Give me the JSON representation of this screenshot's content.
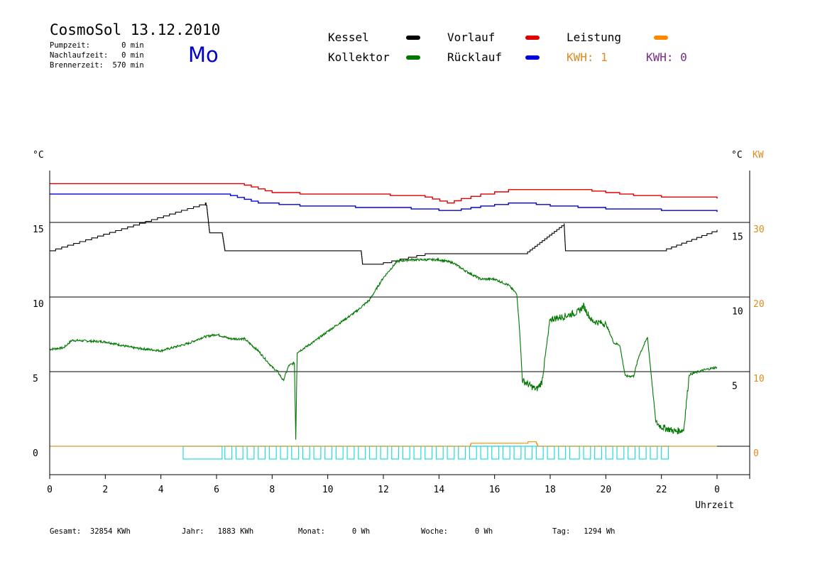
{
  "header": {
    "title": "CosmoSol 13.12.2010",
    "day": "Mo",
    "pumpzeit": "Pumpzeit:       0 min",
    "nachlaufzeit": "Nachlaufzeit:   0 min",
    "brennerzeit": "Brennerzeit:  570 min"
  },
  "legend": {
    "kessel": "Kessel",
    "kollektor": "Kollektor",
    "vorlauf": "Vorlauf",
    "ruecklauf": "Rücklauf",
    "leistung": "Leistung",
    "kwh1": "KWH: 1",
    "kwh2": "KWH: 0",
    "colors": {
      "kessel": "#000000",
      "kollektor": "#007700",
      "vorlauf": "#dd0000",
      "ruecklauf": "#0000dd",
      "leistung": "#ff8800",
      "kwh1": "#e08a1e",
      "kwh2": "#7a2a8a"
    }
  },
  "footer": {
    "gesamt": "Gesamt:  32854 KWh",
    "jahr": "Jahr:   1883 KWh",
    "monat": "Monat:      0 Wh",
    "woche": "Woche:      0 Wh",
    "tag": "Tag:   1294 Wh"
  },
  "chart_data": {
    "type": "line",
    "xlabel": "Uhrzeit",
    "ylabel_left": "°C",
    "ylabel_right": "°C",
    "ylabel_right2": "KW",
    "x_ticks": [
      "0",
      "2",
      "4",
      "6",
      "8",
      "10",
      "12",
      "14",
      "16",
      "18",
      "20",
      "22",
      "0"
    ],
    "xlim": [
      0,
      24
    ],
    "ylim": [
      -2,
      18.5
    ],
    "y_left_ticks": [
      "0",
      "5",
      "10",
      "15"
    ],
    "y_right_ticks": [
      "5",
      "10",
      "15"
    ],
    "y_kw_ticks": [
      "0",
      "10",
      "20",
      "30"
    ],
    "y_right_ticks_values": [
      4.5,
      9.5,
      14.5
    ],
    "series": [
      {
        "name": "Vorlauf",
        "color": "#dd0000",
        "x": [
          0,
          6.5,
          7,
          8,
          9,
          11,
          13.5,
          14.3,
          14.8,
          15.5,
          16.5,
          18,
          19,
          20,
          21,
          22,
          24
        ],
        "y": [
          17.6,
          17.6,
          17.5,
          17,
          16.9,
          16.9,
          16.7,
          16.3,
          16.6,
          16.9,
          17.2,
          17.2,
          17.2,
          17,
          16.8,
          16.7,
          16.6
        ]
      },
      {
        "name": "Rücklauf",
        "color": "#0000dd",
        "x": [
          0,
          5.5,
          6.5,
          7.5,
          9,
          11,
          13,
          14,
          14.8,
          15.5,
          16.5,
          17,
          18,
          19,
          20,
          22,
          24
        ],
        "y": [
          16.9,
          16.9,
          16.8,
          16.3,
          16.1,
          16.0,
          15.9,
          15.8,
          15.9,
          16.1,
          16.3,
          16.3,
          16.1,
          16.0,
          15.9,
          15.8,
          15.7
        ]
      },
      {
        "name": "Kessel",
        "color": "#000000",
        "x": [
          0,
          5.6,
          5.65,
          5.75,
          6.2,
          6.25,
          6.3,
          11.2,
          11.25,
          12,
          13.5,
          16.5,
          17.1,
          18.5,
          18.55,
          22,
          24
        ],
        "y": [
          13.1,
          16.3,
          16,
          14.3,
          14.3,
          13.7,
          13.1,
          13.1,
          12.2,
          12.3,
          12.9,
          12.9,
          12.9,
          14.9,
          13.1,
          13.1,
          14.5
        ]
      },
      {
        "name": "Kollektor",
        "color": "#007700",
        "x": [
          0,
          0.5,
          0.8,
          2,
          3,
          4,
          5,
          5.5,
          6,
          6.5,
          7,
          7.5,
          8,
          8.2,
          8.4,
          8.6,
          8.8,
          8.85,
          8.9,
          9,
          9.5,
          10,
          11,
          11.5,
          12,
          12.5,
          13,
          13.5,
          14,
          14.5,
          15,
          15.5,
          16,
          16.5,
          16.8,
          16.9,
          17,
          17.5,
          17.7,
          18,
          18.5,
          19,
          19.2,
          19.5,
          20,
          20.3,
          20.5,
          20.7,
          21,
          21.2,
          21.5,
          21.8,
          22,
          22.5,
          22.8,
          23,
          23.5,
          24
        ],
        "y": [
          6.5,
          6.6,
          7.1,
          7,
          6.6,
          6.4,
          6.9,
          7.3,
          7.5,
          7.2,
          7.2,
          6.4,
          5.3,
          5,
          4.4,
          5.4,
          5.6,
          0.5,
          6.3,
          6.4,
          7,
          7.7,
          9,
          9.8,
          11.3,
          12.4,
          12.5,
          12.5,
          12.5,
          12.3,
          11.7,
          11.2,
          11.2,
          10.8,
          10.2,
          7.8,
          4.4,
          3.8,
          4.3,
          8.5,
          8.7,
          9,
          9.4,
          8.4,
          8.2,
          6.9,
          6.8,
          4.7,
          4.7,
          6.1,
          7.3,
          1.6,
          1.3,
          1,
          1.1,
          4.8,
          5.1,
          5.3
        ]
      },
      {
        "name": "Leistung",
        "color": "#ff8800",
        "x": [
          0,
          15.1,
          15.15,
          16.5,
          17.2,
          17.5,
          17.55,
          24
        ],
        "y": [
          0,
          0,
          0.2,
          0.2,
          0.3,
          0.2,
          0,
          0
        ]
      }
    ],
    "pump_blocks": [
      [
        4.8,
        6.2
      ],
      [
        6.3,
        6.55
      ],
      [
        6.7,
        6.95
      ],
      [
        7.1,
        7.35
      ],
      [
        7.5,
        7.75
      ],
      [
        7.9,
        8.15
      ],
      [
        8.3,
        8.55
      ],
      [
        8.7,
        8.95
      ],
      [
        9.1,
        9.35
      ],
      [
        9.5,
        9.75
      ],
      [
        9.9,
        10.15
      ],
      [
        10.3,
        10.55
      ],
      [
        10.7,
        10.95
      ],
      [
        11.1,
        11.35
      ],
      [
        11.5,
        11.75
      ],
      [
        11.9,
        12.15
      ],
      [
        12.3,
        12.55
      ],
      [
        12.7,
        12.95
      ],
      [
        13.1,
        13.35
      ],
      [
        13.5,
        13.75
      ],
      [
        13.9,
        14.15
      ],
      [
        14.3,
        14.55
      ],
      [
        14.7,
        14.95
      ],
      [
        15.1,
        15.35
      ],
      [
        15.5,
        15.75
      ],
      [
        15.9,
        16.15
      ],
      [
        16.3,
        16.55
      ],
      [
        16.7,
        16.95
      ],
      [
        17.1,
        17.35
      ],
      [
        17.5,
        17.75
      ],
      [
        17.9,
        18.15
      ],
      [
        18.3,
        18.55
      ],
      [
        18.7,
        19.05
      ],
      [
        19.2,
        19.45
      ],
      [
        19.6,
        19.85
      ],
      [
        20.0,
        20.25
      ],
      [
        20.4,
        20.65
      ],
      [
        20.8,
        21.05
      ],
      [
        21.2,
        21.45
      ],
      [
        21.6,
        21.85
      ],
      [
        22.0,
        22.25
      ]
    ],
    "pump_color": "#22dddd"
  }
}
